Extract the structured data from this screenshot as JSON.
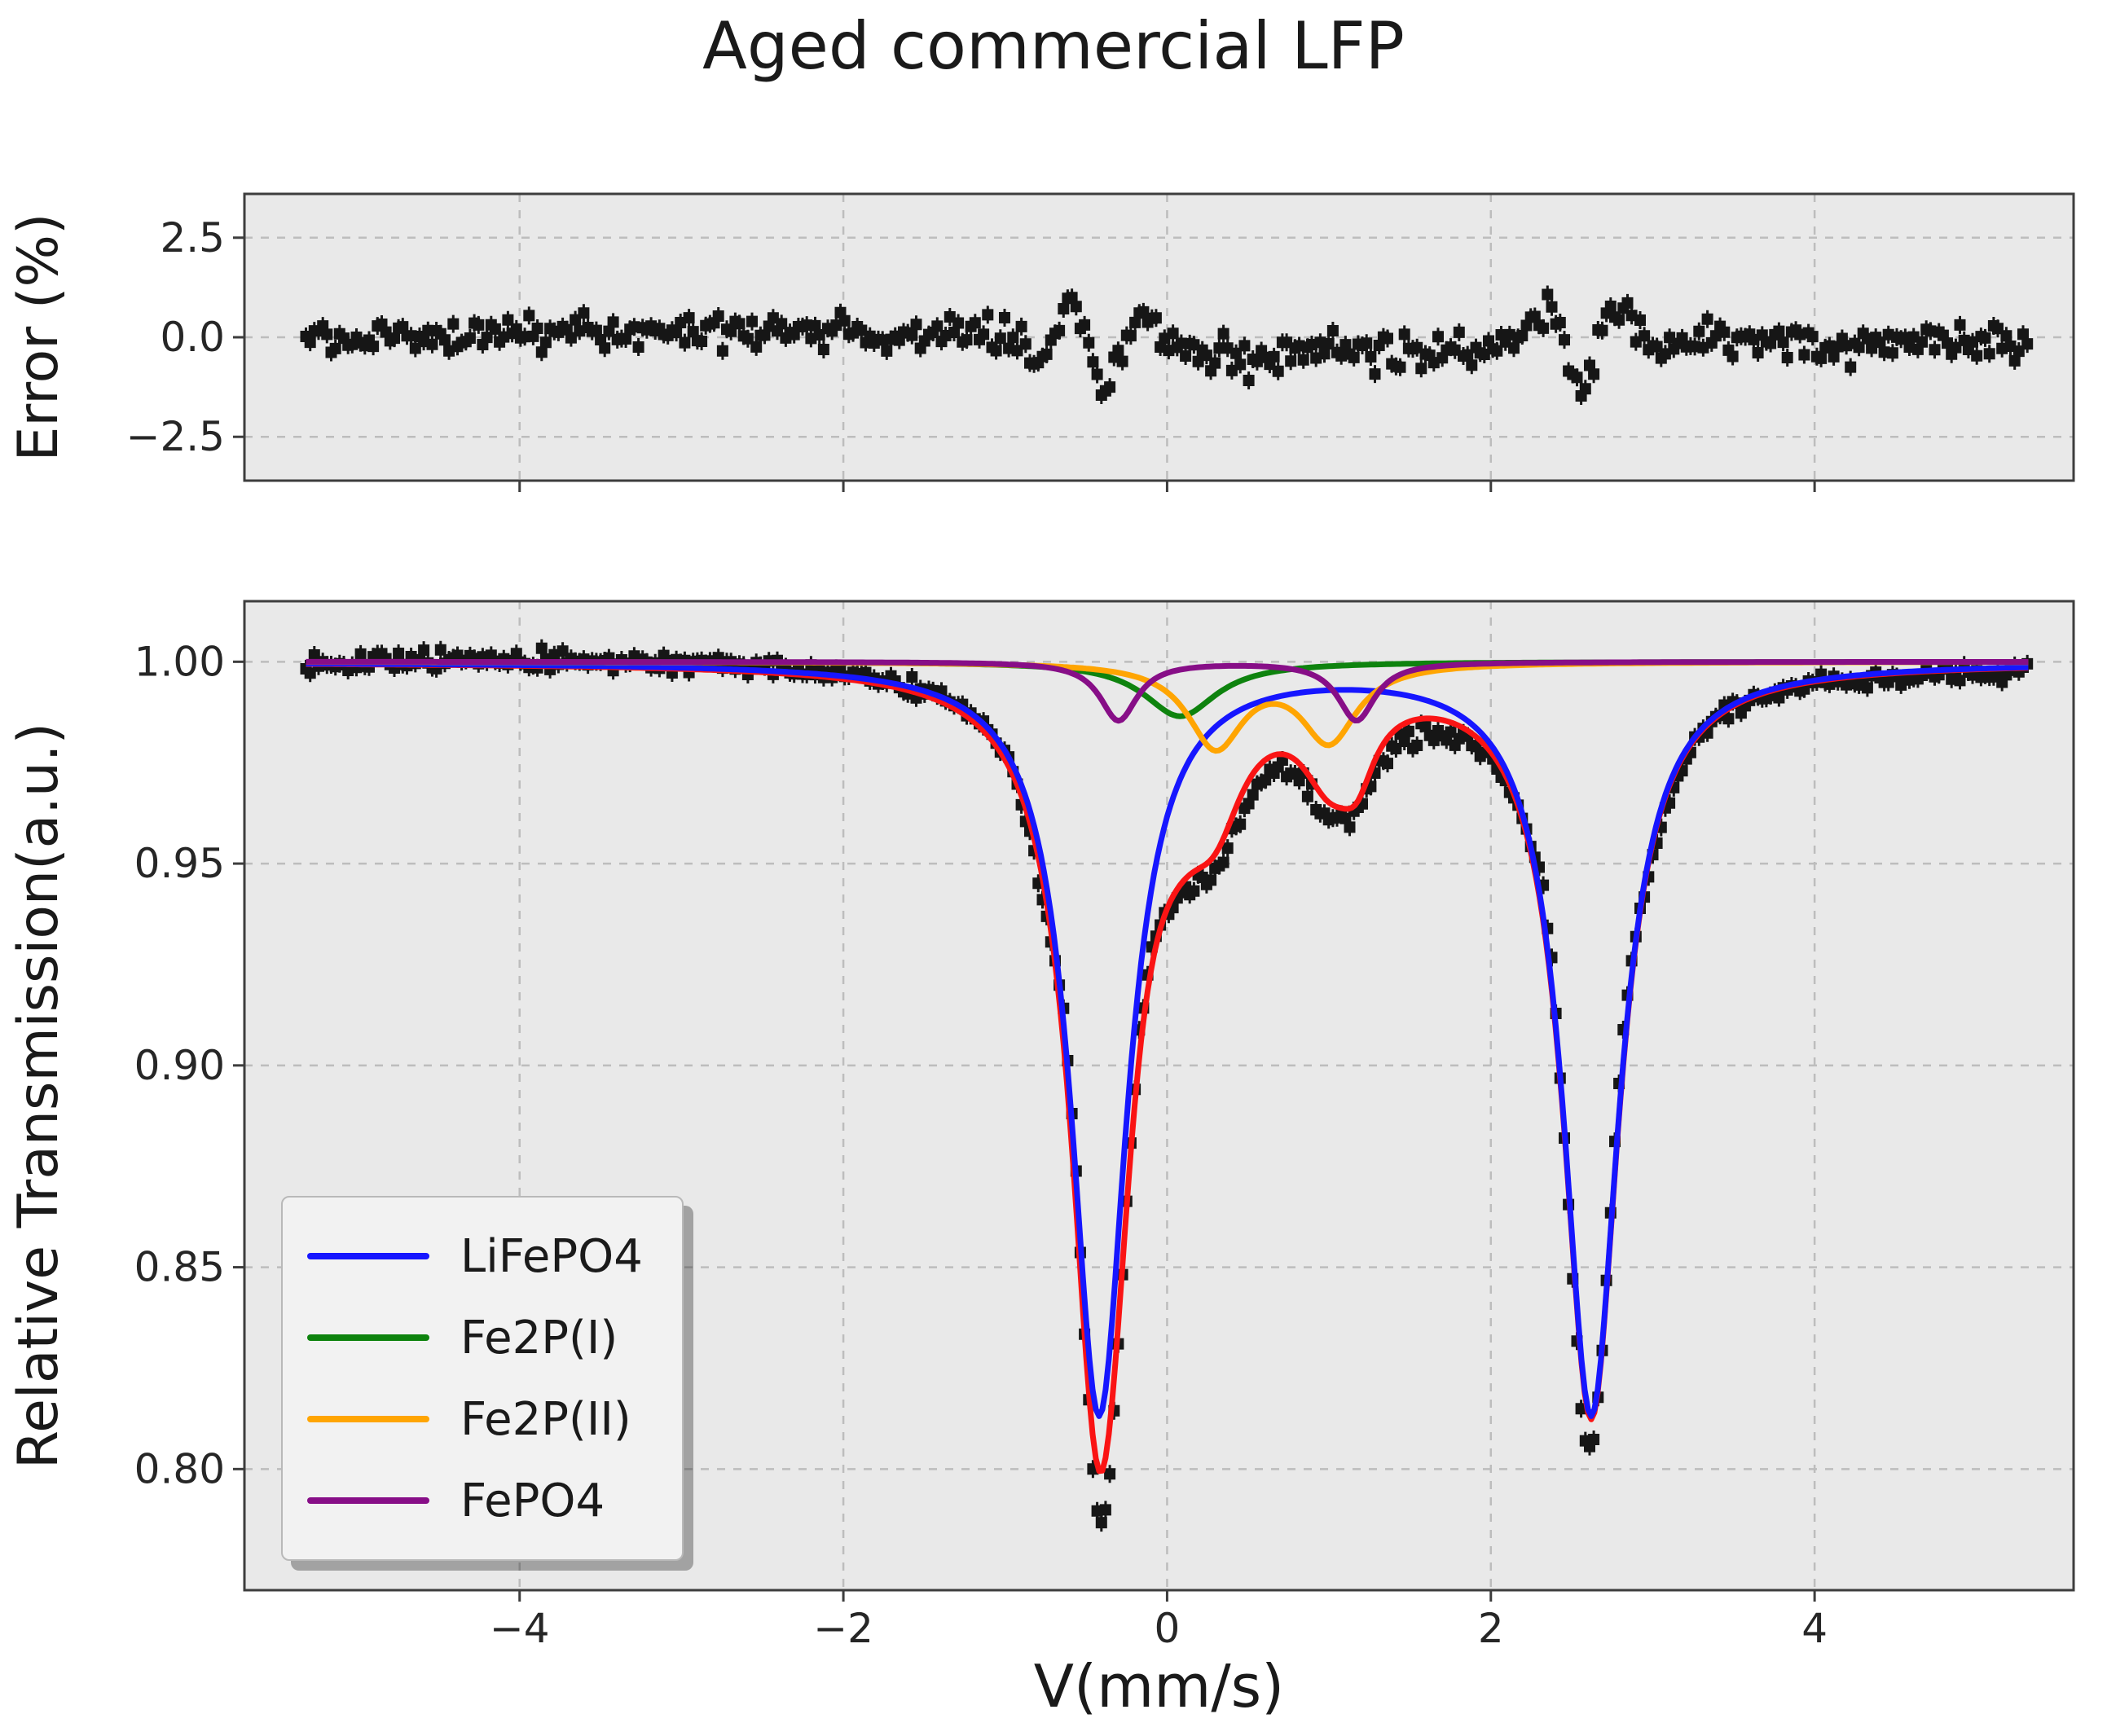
{
  "title": "Aged commercial LFP",
  "style": {
    "axes_bg": "#e9e9e9",
    "grid": "#bdbdbd",
    "spine": "#3d3d3d",
    "tick_text": "#262626",
    "marker": "#161616"
  },
  "chart_data": [
    {
      "id": "error-residuals",
      "type": "scatter",
      "ylabel": "Error (%)",
      "xlim": [
        -5.7,
        5.6
      ],
      "ylim": [
        -3.6,
        3.6
      ],
      "yticks": [
        2.5,
        0.0,
        -2.5
      ],
      "ytick_labels": [
        "2.5",
        "0.0",
        "−2.5"
      ],
      "xticks": [
        -4,
        -2,
        0,
        2,
        4
      ],
      "grid": true,
      "grid_style": "dashed",
      "marker": "s",
      "marker_color": "#161616",
      "points_x_range": [
        -5.32,
        5.32
      ],
      "points_step": 0.026,
      "noise_sd_percent": 0.22,
      "seed": 12,
      "residual_summary": "noise band about 0 with structured wiggles of +-1.5% near v=-0.4 and v=2.6 where fit deviates from data"
    },
    {
      "id": "mossbauer-spectrum",
      "type": "line+scatter",
      "xlabel": "V(mm/s)",
      "ylabel": "Relative Transmission(a.u.)",
      "xlim": [
        -5.7,
        5.6
      ],
      "ylim": [
        0.77,
        1.015
      ],
      "yticks": [
        1.0,
        0.95,
        0.9,
        0.85,
        0.8
      ],
      "ytick_labels": [
        "1.00",
        "0.95",
        "0.90",
        "0.85",
        "0.80"
      ],
      "xticks": [
        -4,
        -2,
        0,
        2,
        4
      ],
      "xtick_labels": [
        "−4",
        "−2",
        "0",
        "2",
        "4"
      ],
      "grid": true,
      "grid_style": "dashed",
      "marker": "s",
      "marker_color": "#161616",
      "points_x_range": [
        -5.32,
        5.32
      ],
      "points_step": 0.026,
      "noise_sd": 0.0011,
      "seed": 12,
      "total_fit_color": "#fa1414",
      "baseline": 1.0,
      "components": [
        {
          "name": "LiFePO4",
          "color": "#1616ff",
          "lines": [
            {
              "center": -0.42,
              "depth": 0.186,
              "fwhm": 0.42
            },
            {
              "center": 2.62,
              "depth": 0.186,
              "fwhm": 0.42
            }
          ]
        },
        {
          "name": "Fe2P(I)",
          "color": "#0e830e",
          "lines": [
            {
              "center": 0.08,
              "depth": 0.0135,
              "fwhm": 0.55
            }
          ]
        },
        {
          "name": "Fe2P(II)",
          "color": "#ffa502",
          "lines": [
            {
              "center": 0.3,
              "depth": 0.0205,
              "fwhm": 0.42
            },
            {
              "center": 1.0,
              "depth": 0.019,
              "fwhm": 0.42
            }
          ]
        },
        {
          "name": "FePO4",
          "color": "#870e87",
          "lines": [
            {
              "center": -0.3,
              "depth": 0.0145,
              "fwhm": 0.28
            },
            {
              "center": 1.17,
              "depth": 0.0145,
              "fwhm": 0.28
            }
          ]
        }
      ],
      "misfit_gaussians": [
        {
          "x0": -3.0,
          "amp": 0.0015,
          "w": 2.5
        },
        {
          "x0": -0.78,
          "amp": -0.006,
          "w": 0.12
        },
        {
          "x0": -0.6,
          "amp": 0.01,
          "w": 0.1
        },
        {
          "x0": -0.4,
          "amp": -0.014,
          "w": 0.1
        },
        {
          "x0": -0.15,
          "amp": 0.006,
          "w": 0.12
        },
        {
          "x0": 0.5,
          "amp": -0.005,
          "w": 0.6
        },
        {
          "x0": 1.6,
          "amp": -0.004,
          "w": 0.4
        },
        {
          "x0": 2.35,
          "amp": 0.009,
          "w": 0.1
        },
        {
          "x0": 2.55,
          "amp": -0.011,
          "w": 0.1
        },
        {
          "x0": 2.8,
          "amp": 0.008,
          "w": 0.12
        },
        {
          "x0": 3.05,
          "amp": -0.004,
          "w": 0.15
        },
        {
          "x0": 4.6,
          "amp": -0.0008,
          "w": 1.8
        }
      ],
      "absorption_minima": {
        "left_dip": {
          "x": -0.42,
          "data_min": 0.783,
          "total_fit_min": 0.797,
          "lifepo4_min": 0.814
        },
        "right_dip": {
          "x": 2.62,
          "data_min": 0.803,
          "total_fit_min": 0.812,
          "lifepo4_min": 0.814
        }
      },
      "legend": {
        "position": "lower left",
        "items": [
          {
            "label": "LiFePO4",
            "color": "#1616ff"
          },
          {
            "label": "Fe2P(I)",
            "color": "#0e830e"
          },
          {
            "label": "Fe2P(II)",
            "color": "#ffa502"
          },
          {
            "label": "FePO4",
            "color": "#870e87"
          }
        ]
      }
    }
  ]
}
